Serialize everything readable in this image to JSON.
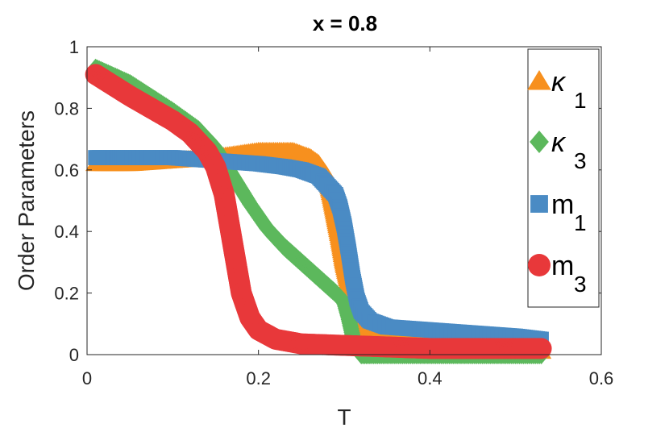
{
  "chart_data": {
    "type": "scatter",
    "title": "x = 0.8",
    "xlabel": "T",
    "ylabel": "Order Parameters",
    "xlim": [
      0,
      0.6
    ],
    "ylim": [
      0,
      1
    ],
    "xticks": [
      "0",
      "0.2",
      "0.4",
      "0.6"
    ],
    "yticks": [
      "0",
      "0.2",
      "0.4",
      "0.6",
      "0.8",
      "1"
    ],
    "grid": false,
    "legend_position": "top-right",
    "series": [
      {
        "name": "κ",
        "subscript": "1",
        "marker": "triangle",
        "color": "#f7901e",
        "x": [
          0.01,
          0.05,
          0.1,
          0.15,
          0.2,
          0.22,
          0.24,
          0.26,
          0.27,
          0.28,
          0.285,
          0.29,
          0.295,
          0.3,
          0.305,
          0.31,
          0.32,
          0.33,
          0.35,
          0.4,
          0.45,
          0.5,
          0.53
        ],
        "y": [
          0.62,
          0.62,
          0.63,
          0.64,
          0.66,
          0.66,
          0.66,
          0.64,
          0.62,
          0.58,
          0.52,
          0.45,
          0.38,
          0.3,
          0.24,
          0.18,
          0.1,
          0.07,
          0.05,
          0.04,
          0.03,
          0.02,
          0.01
        ]
      },
      {
        "name": "κ",
        "subscript": "3",
        "marker": "diamond",
        "color": "#5cb85c",
        "x": [
          0.01,
          0.05,
          0.1,
          0.13,
          0.15,
          0.17,
          0.19,
          0.21,
          0.23,
          0.25,
          0.27,
          0.29,
          0.3,
          0.305,
          0.31,
          0.315,
          0.32,
          0.33,
          0.35,
          0.4,
          0.45,
          0.5,
          0.53
        ],
        "y": [
          0.93,
          0.88,
          0.79,
          0.73,
          0.67,
          0.58,
          0.49,
          0.41,
          0.35,
          0.3,
          0.25,
          0.2,
          0.17,
          0.12,
          0.06,
          0.02,
          0.0,
          0.0,
          0.0,
          0.0,
          0.0,
          0.0,
          0.0
        ]
      },
      {
        "name": "m",
        "subscript": "1",
        "marker": "square",
        "color": "#4a8bc4",
        "x": [
          0.01,
          0.05,
          0.1,
          0.15,
          0.2,
          0.23,
          0.25,
          0.27,
          0.28,
          0.29,
          0.295,
          0.3,
          0.305,
          0.31,
          0.315,
          0.32,
          0.33,
          0.35,
          0.4,
          0.45,
          0.5,
          0.53
        ],
        "y": [
          0.64,
          0.64,
          0.64,
          0.63,
          0.62,
          0.61,
          0.6,
          0.58,
          0.55,
          0.52,
          0.48,
          0.42,
          0.34,
          0.25,
          0.18,
          0.14,
          0.11,
          0.09,
          0.08,
          0.07,
          0.06,
          0.05
        ]
      },
      {
        "name": "m",
        "subscript": "3",
        "marker": "circle",
        "color": "#e8383a",
        "x": [
          0.01,
          0.05,
          0.1,
          0.12,
          0.14,
          0.15,
          0.16,
          0.165,
          0.17,
          0.175,
          0.18,
          0.19,
          0.2,
          0.22,
          0.25,
          0.3,
          0.35,
          0.4,
          0.45,
          0.5,
          0.53
        ],
        "y": [
          0.91,
          0.84,
          0.76,
          0.72,
          0.66,
          0.61,
          0.52,
          0.44,
          0.36,
          0.28,
          0.2,
          0.12,
          0.08,
          0.05,
          0.035,
          0.03,
          0.025,
          0.02,
          0.02,
          0.02,
          0.02
        ]
      }
    ]
  }
}
